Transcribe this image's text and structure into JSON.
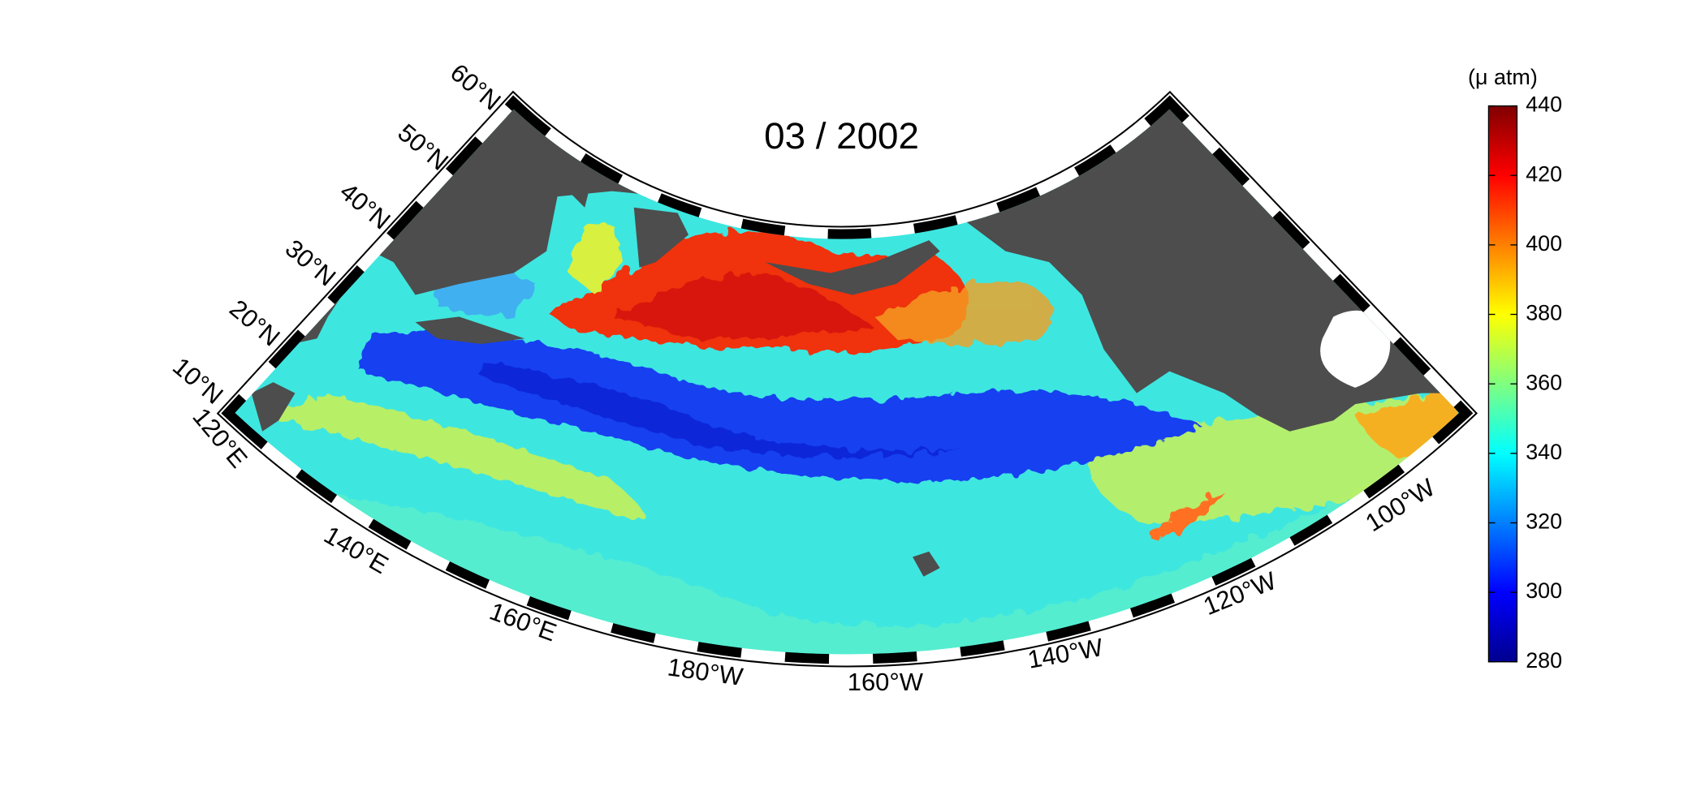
{
  "title": "03 / 2002",
  "latitude_labels": [
    "10°N",
    "20°N",
    "30°N",
    "40°N",
    "50°N",
    "60°N"
  ],
  "longitude_labels": [
    "120°E",
    "140°E",
    "160°E",
    "180°W",
    "160°W",
    "140°W",
    "120°W",
    "100°W"
  ],
  "colorbar": {
    "label": "(μ atm)",
    "lim": [
      280,
      440
    ],
    "ticks": [
      280,
      300,
      320,
      340,
      360,
      380,
      400,
      420,
      440
    ]
  }
}
